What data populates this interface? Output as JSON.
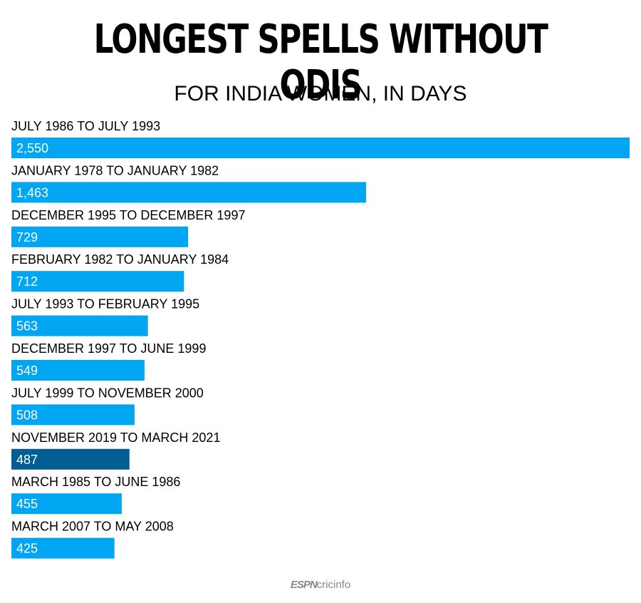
{
  "header": {
    "title": "LONGEST SPELLS WITHOUT ODIS",
    "subtitle": "FOR INDIA WOMEN, IN DAYS"
  },
  "chart_data": {
    "type": "bar",
    "orientation": "horizontal",
    "title": "LONGEST SPELLS WITHOUT ODIS",
    "subtitle": "FOR INDIA WOMEN, IN DAYS",
    "categories": [
      "JULY 1986  TO  JULY 1993",
      "JANUARY 1978 TO JANUARY 1982",
      "DECEMBER 1995 TO DECEMBER 1997",
      "FEBRUARY 1982 TO JANUARY 1984",
      "JULY 1993 TO FEBRUARY 1995",
      "DECEMBER 1997 TO JUNE 1999",
      "JULY 1999 TO NOVEMBER 2000",
      "NOVEMBER 2019 TO MARCH 2021",
      "MARCH 1985 TO JUNE 1986",
      "MARCH 2007 TO MAY 2008"
    ],
    "values": [
      2550,
      1463,
      729,
      712,
      563,
      549,
      508,
      487,
      455,
      425
    ],
    "value_labels": [
      "2,550",
      "1,463",
      "729",
      "712",
      "563",
      "549",
      "508",
      "487",
      "455",
      "425"
    ],
    "highlight_index": 7,
    "colors": {
      "bar": "#00a6f2",
      "highlight": "#005e92"
    },
    "grid": false,
    "legend": "none"
  },
  "footer": {
    "logo_espn": "ESPN",
    "logo_rest": "cricinfo"
  }
}
